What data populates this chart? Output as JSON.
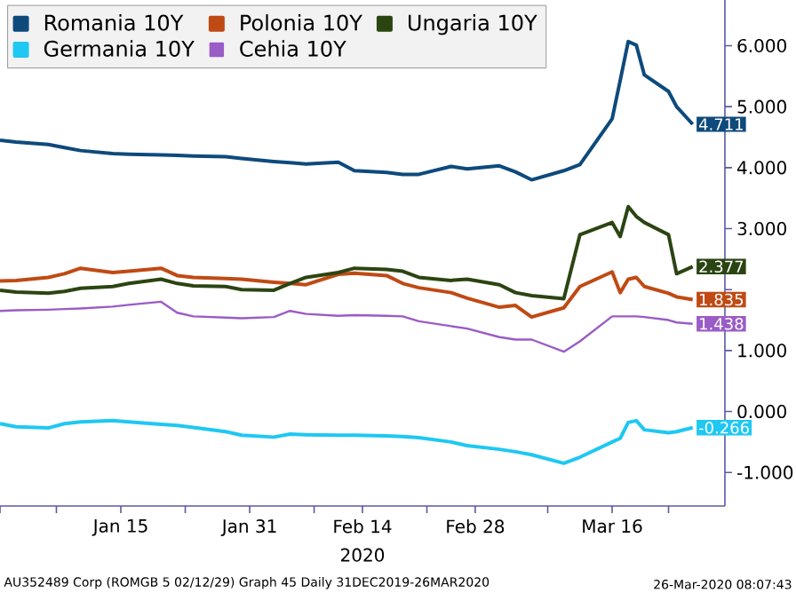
{
  "chart_data": {
    "type": "line",
    "x": [
      "2019-12-31",
      "2020-01-02",
      "2020-01-06",
      "2020-01-08",
      "2020-01-10",
      "2020-01-14",
      "2020-01-16",
      "2020-01-20",
      "2020-01-22",
      "2020-01-24",
      "2020-01-28",
      "2020-01-30",
      "2020-02-03",
      "2020-02-05",
      "2020-02-07",
      "2020-02-11",
      "2020-02-13",
      "2020-02-17",
      "2020-02-19",
      "2020-02-21",
      "2020-02-25",
      "2020-02-27",
      "2020-03-02",
      "2020-03-04",
      "2020-03-06",
      "2020-03-10",
      "2020-03-12",
      "2020-03-16",
      "2020-03-17",
      "2020-03-18",
      "2020-03-19",
      "2020-03-20",
      "2020-03-23",
      "2020-03-24",
      "2020-03-26"
    ],
    "xlim": [
      "2019-12-31",
      "2020-03-30"
    ],
    "xticks": [
      {
        "value": "2019-12-31",
        "label": null
      },
      {
        "value": "2020-01-07",
        "label": null
      },
      {
        "value": "2020-01-15",
        "label": "Jan 15"
      },
      {
        "value": "2020-01-23",
        "label": null
      },
      {
        "value": "2020-01-31",
        "label": "Jan 31"
      },
      {
        "value": "2020-02-08",
        "label": null
      },
      {
        "value": "2020-02-14",
        "label": "Feb 14"
      },
      {
        "value": "2020-02-22",
        "label": null
      },
      {
        "value": "2020-02-28",
        "label": "Feb 28"
      },
      {
        "value": "2020-03-08",
        "label": null
      },
      {
        "value": "2020-03-16",
        "label": "Mar 16"
      },
      {
        "value": "2020-03-23",
        "label": null
      }
    ],
    "xlabel": "2020",
    "ylim": [
      -1.55,
      6.75
    ],
    "yticks": [
      {
        "value": -1,
        "label": "-1.000"
      },
      {
        "value": 0,
        "label": "0.000"
      },
      {
        "value": 1,
        "label": "1.000"
      },
      {
        "value": 2,
        "label": null
      },
      {
        "value": 3,
        "label": "3.000"
      },
      {
        "value": 4,
        "label": "4.000"
      },
      {
        "value": 5,
        "label": "5.000"
      },
      {
        "value": 6,
        "label": "6.000"
      }
    ],
    "legend": "top left",
    "series": [
      {
        "name": "Romania 10Y",
        "color": "#0e4a7c",
        "values": [
          4.45,
          4.42,
          4.38,
          4.33,
          4.28,
          4.23,
          4.22,
          4.21,
          4.2,
          4.19,
          4.18,
          4.15,
          4.1,
          4.08,
          4.06,
          4.09,
          3.95,
          3.92,
          3.89,
          3.89,
          4.02,
          3.98,
          4.03,
          3.93,
          3.8,
          3.95,
          4.05,
          4.8,
          5.43,
          6.07,
          6.01,
          5.52,
          5.25,
          5.0,
          4.711
        ],
        "value_labels": [
          null,
          null,
          null,
          null,
          null,
          null,
          null,
          null,
          null,
          null,
          null,
          null,
          null,
          null,
          null,
          null,
          null,
          null,
          null,
          null,
          null,
          null,
          null,
          null,
          null,
          null,
          null,
          null,
          null,
          null,
          null,
          null,
          null,
          null,
          "4.711"
        ]
      },
      {
        "name": "Polonia 10Y",
        "color": "#c04a14",
        "values": [
          2.14,
          2.15,
          2.2,
          2.26,
          2.35,
          2.28,
          2.3,
          2.35,
          2.23,
          2.2,
          2.18,
          2.17,
          2.12,
          2.1,
          2.08,
          2.25,
          2.27,
          2.23,
          2.1,
          2.03,
          1.95,
          1.86,
          1.71,
          1.74,
          1.55,
          1.7,
          2.05,
          2.29,
          1.95,
          2.17,
          2.2,
          2.05,
          1.94,
          1.88,
          1.835
        ],
        "value_labels": [
          null,
          null,
          null,
          null,
          null,
          null,
          null,
          null,
          null,
          null,
          null,
          null,
          null,
          null,
          null,
          null,
          null,
          null,
          null,
          null,
          null,
          null,
          null,
          null,
          null,
          null,
          null,
          null,
          null,
          null,
          null,
          null,
          null,
          null,
          "1.835"
        ]
      },
      {
        "name": "Ungaria 10Y",
        "color": "#2b4512",
        "values": [
          1.99,
          1.96,
          1.94,
          1.97,
          2.02,
          2.05,
          2.1,
          2.17,
          2.1,
          2.06,
          2.05,
          2.0,
          1.99,
          2.1,
          2.2,
          2.28,
          2.35,
          2.33,
          2.3,
          2.2,
          2.15,
          2.17,
          2.08,
          1.95,
          1.9,
          1.85,
          2.9,
          3.1,
          2.87,
          3.36,
          3.2,
          3.1,
          2.9,
          2.26,
          2.377
        ],
        "value_labels": [
          null,
          null,
          null,
          null,
          null,
          null,
          null,
          null,
          null,
          null,
          null,
          null,
          null,
          null,
          null,
          null,
          null,
          null,
          null,
          null,
          null,
          null,
          null,
          null,
          null,
          null,
          null,
          null,
          null,
          null,
          null,
          null,
          null,
          null,
          "2.377"
        ]
      },
      {
        "name": "Germania 10Y",
        "color": "#1ec8f2",
        "values": [
          -0.2,
          -0.25,
          -0.27,
          -0.2,
          -0.17,
          -0.15,
          -0.17,
          -0.21,
          -0.23,
          -0.26,
          -0.33,
          -0.39,
          -0.42,
          -0.37,
          -0.38,
          -0.39,
          -0.39,
          -0.4,
          -0.41,
          -0.43,
          -0.5,
          -0.56,
          -0.62,
          -0.66,
          -0.71,
          -0.85,
          -0.75,
          -0.5,
          -0.44,
          -0.18,
          -0.15,
          -0.3,
          -0.35,
          -0.33,
          -0.266
        ],
        "value_labels": [
          null,
          null,
          null,
          null,
          null,
          null,
          null,
          null,
          null,
          null,
          null,
          null,
          null,
          null,
          null,
          null,
          null,
          null,
          null,
          null,
          null,
          null,
          null,
          null,
          null,
          null,
          null,
          null,
          null,
          null,
          null,
          null,
          null,
          null,
          "-0.266"
        ]
      },
      {
        "name": "Cehia 10Y",
        "color": "#9a5cc6",
        "values": [
          1.65,
          1.66,
          1.67,
          1.68,
          1.69,
          1.72,
          1.75,
          1.8,
          1.62,
          1.56,
          1.54,
          1.53,
          1.55,
          1.65,
          1.6,
          1.57,
          1.58,
          1.57,
          1.56,
          1.48,
          1.4,
          1.36,
          1.22,
          1.18,
          1.18,
          0.98,
          1.15,
          1.56,
          1.56,
          1.56,
          1.56,
          1.55,
          1.5,
          1.46,
          1.438
        ],
        "value_labels": [
          null,
          null,
          null,
          null,
          null,
          null,
          null,
          null,
          null,
          null,
          null,
          null,
          null,
          null,
          null,
          null,
          null,
          null,
          null,
          null,
          null,
          null,
          null,
          null,
          null,
          null,
          null,
          null,
          null,
          null,
          null,
          null,
          null,
          null,
          "1.438"
        ]
      }
    ],
    "annotations": [
      "AU352489 Corp (ROMGB 5 02/12/29) Graph 45  Daily 31DEC2019-26MAR2020",
      "26-Mar-2020 08:07:43"
    ]
  }
}
